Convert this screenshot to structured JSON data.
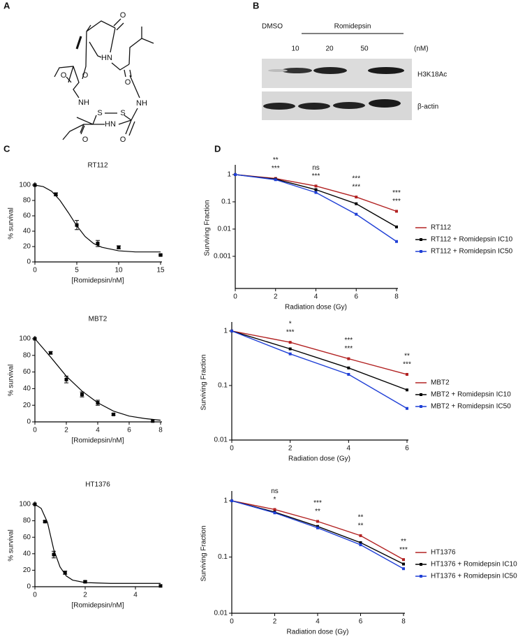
{
  "panel_labels": [
    "A",
    "B",
    "C",
    "D"
  ],
  "structure": {
    "atoms": [
      "O",
      "O",
      "O",
      "HN",
      "O",
      "NH",
      "S",
      "S",
      "NH",
      "HN",
      "O",
      "O"
    ]
  },
  "blot": {
    "treatments": [
      "DMSO",
      "Romidepsin"
    ],
    "doses": [
      "10",
      "20",
      "50"
    ],
    "unit": "(nM)",
    "bands": [
      "H3K18Ac",
      "β-actin"
    ]
  },
  "chart_data": [
    {
      "type": "scatter",
      "title": "RT112",
      "xlabel": "[Romidepsin/nM]",
      "ylabel": "% survival",
      "x": [
        0,
        2.5,
        5,
        7.5,
        10,
        15
      ],
      "values": [
        100,
        88,
        48,
        24,
        19,
        9
      ],
      "errors": [
        null,
        2,
        6,
        4,
        2,
        1
      ],
      "fit": {
        "x": [
          0,
          1,
          2,
          3,
          4,
          5,
          6,
          7,
          8,
          10,
          12,
          15
        ],
        "values": [
          100,
          98,
          92,
          80,
          64,
          47,
          33,
          24,
          19,
          14.5,
          13,
          13
        ]
      },
      "color": "#000000",
      "xlim": [
        0,
        15
      ],
      "ylim": [
        0,
        100
      ],
      "xticks": [
        0,
        5,
        10,
        15
      ],
      "yticks": [
        0,
        20,
        40,
        60,
        80,
        100
      ]
    },
    {
      "type": "scatter",
      "title": "MBT2",
      "xlabel": "[Romidepsin/nM]",
      "ylabel": "% survival",
      "x": [
        0,
        1,
        2,
        3,
        4,
        5,
        7.5
      ],
      "values": [
        100,
        83,
        51,
        33,
        23,
        9,
        1
      ],
      "errors": [
        null,
        1.5,
        4,
        3,
        3,
        1,
        null
      ],
      "fit": {
        "x": [
          0,
          1,
          2,
          3,
          4,
          5,
          6,
          7,
          8
        ],
        "values": [
          100,
          78,
          55,
          37,
          23,
          13,
          7,
          4,
          2
        ]
      },
      "color": "#000000",
      "xlim": [
        0,
        8
      ],
      "ylim": [
        0,
        100
      ],
      "xticks": [
        0,
        2,
        4,
        6,
        8
      ],
      "yticks": [
        0,
        20,
        40,
        60,
        80,
        100
      ]
    },
    {
      "type": "scatter",
      "title": "HT1376",
      "xlabel": "[Romidepsin/nM]",
      "ylabel": "% survival",
      "x": [
        0,
        0.4,
        0.75,
        1.2,
        2,
        5
      ],
      "values": [
        100,
        79,
        39,
        17,
        6,
        1
      ],
      "errors": [
        null,
        1,
        4,
        2,
        1,
        null
      ],
      "fit": {
        "x": [
          0,
          0.25,
          0.5,
          0.75,
          1,
          1.25,
          1.5,
          2,
          3,
          5
        ],
        "values": [
          100,
          95,
          78,
          45,
          24,
          13,
          8,
          5,
          4,
          4
        ]
      },
      "color": "#000000",
      "xlim": [
        0,
        5
      ],
      "ylim": [
        0,
        100
      ],
      "xticks": [
        0,
        2,
        4
      ],
      "yticks": [
        0,
        20,
        40,
        60,
        80,
        100
      ]
    },
    {
      "type": "line",
      "log_y": true,
      "xlabel": "Radiation dose (Gy)",
      "ylabel": "Surviving Fraction",
      "x": [
        0,
        2,
        4,
        6,
        8
      ],
      "series": [
        {
          "name": "RT112",
          "color": "#b22222",
          "values": [
            1,
            0.72,
            0.38,
            0.15,
            0.045
          ]
        },
        {
          "name": "RT112 + Romidepsin IC10",
          "color": "#000000",
          "values": [
            1,
            0.68,
            0.28,
            0.085,
            0.012
          ]
        },
        {
          "name": "RT112 + Romidepsin IC50",
          "color": "#1f3fd6",
          "values": [
            1,
            0.65,
            0.22,
            0.035,
            0.0035
          ]
        }
      ],
      "annotations": [
        {
          "x": 2,
          "lines": [
            "**",
            "***"
          ]
        },
        {
          "x": 4,
          "lines": [
            "ns",
            "***"
          ]
        },
        {
          "x": 6,
          "lines": [
            "***",
            "***"
          ]
        },
        {
          "x": 8,
          "lines": [
            "***",
            "***"
          ]
        }
      ],
      "xlim": [
        0,
        8
      ],
      "ylim": [
        6.6e-05,
        1.8
      ],
      "xticks": [
        0,
        2,
        4,
        6,
        8
      ],
      "yticks": [
        1,
        0.1,
        0.01,
        0.001
      ]
    },
    {
      "type": "line",
      "log_y": true,
      "xlabel": "Radiation dose (Gy)",
      "ylabel": "Surviving Fraction",
      "x": [
        0,
        2,
        4,
        6
      ],
      "series": [
        {
          "name": "MBT2",
          "color": "#b22222",
          "values": [
            1,
            0.62,
            0.31,
            0.16
          ]
        },
        {
          "name": "MBT2 + Romidepsin IC10",
          "color": "#000000",
          "values": [
            1,
            0.47,
            0.21,
            0.083
          ]
        },
        {
          "name": "MBT2 + Romidepsin IC50",
          "color": "#1f3fd6",
          "values": [
            1,
            0.38,
            0.16,
            0.038
          ]
        }
      ],
      "annotations": [
        {
          "x": 2,
          "lines": [
            "*",
            "***"
          ]
        },
        {
          "x": 4,
          "lines": [
            "***",
            "***"
          ]
        },
        {
          "x": 6,
          "lines": [
            "**",
            "***"
          ]
        }
      ],
      "xlim": [
        0,
        6
      ],
      "ylim": [
        0.01,
        1.3
      ],
      "xticks": [
        0,
        2,
        4,
        6
      ],
      "yticks": [
        1,
        0.1,
        0.01
      ]
    },
    {
      "type": "line",
      "log_y": true,
      "xlabel": "Radiation dose (Gy)",
      "ylabel": "Surviving Fraction",
      "x": [
        0,
        2,
        4,
        6,
        8
      ],
      "series": [
        {
          "name": "HT1376",
          "color": "#b22222",
          "values": [
            1,
            0.7,
            0.43,
            0.24,
            0.09
          ]
        },
        {
          "name": "HT1376 + Romidepsin IC10",
          "color": "#000000",
          "values": [
            1,
            0.63,
            0.35,
            0.18,
            0.075
          ]
        },
        {
          "name": "HT1376 + Romidepsin IC50",
          "color": "#1f3fd6",
          "values": [
            1,
            0.61,
            0.33,
            0.165,
            0.062
          ]
        }
      ],
      "annotations": [
        {
          "x": 2,
          "lines": [
            "ns",
            "*"
          ]
        },
        {
          "x": 4,
          "lines": [
            "***",
            "**"
          ]
        },
        {
          "x": 6,
          "lines": [
            "**",
            "**"
          ]
        },
        {
          "x": 8,
          "lines": [
            "**",
            "***"
          ]
        }
      ],
      "xlim": [
        0,
        8
      ],
      "ylim": [
        0.01,
        1.33
      ],
      "xticks": [
        0,
        2,
        4,
        6,
        8
      ],
      "yticks": [
        1,
        0.1,
        0.01
      ]
    }
  ]
}
